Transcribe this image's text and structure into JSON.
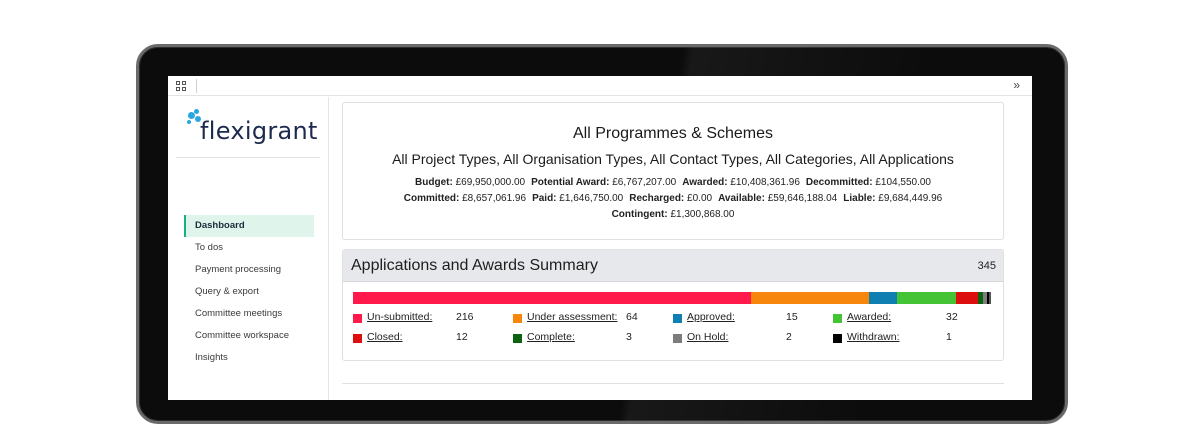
{
  "topbar": {
    "collapse_glyph": "»"
  },
  "logo": {
    "text": "flexigrant"
  },
  "nav": {
    "items": [
      {
        "label": "Dashboard",
        "active": true
      },
      {
        "label": "To dos"
      },
      {
        "label": "Payment processing"
      },
      {
        "label": "Query & export"
      },
      {
        "label": "Committee meetings"
      },
      {
        "label": "Committee workspace"
      },
      {
        "label": "Insights"
      }
    ]
  },
  "header": {
    "title": "All Programmes & Schemes",
    "subtitle": "All Project Types, All Organisation Types, All Contact Types, All Categories, All Applications",
    "financials": [
      [
        {
          "label": "Budget:",
          "value": "£69,950,000.00"
        },
        {
          "label": "Potential Award:",
          "value": "£6,767,207.00"
        },
        {
          "label": "Awarded:",
          "value": "£10,408,361.96"
        },
        {
          "label": "Decommitted:",
          "value": "£104,550.00"
        }
      ],
      [
        {
          "label": "Committed:",
          "value": "£8,657,061.96"
        },
        {
          "label": "Paid:",
          "value": "£1,646,750.00"
        },
        {
          "label": "Recharged:",
          "value": "£0.00"
        },
        {
          "label": "Available:",
          "value": "£59,646,188.04"
        },
        {
          "label": "Liable:",
          "value": "£9,684,449.96"
        }
      ],
      [
        {
          "label": "Contingent:",
          "value": "£1,300,868.00"
        }
      ]
    ]
  },
  "summary": {
    "title": "Applications and Awards Summary",
    "total": "345",
    "statuses": [
      {
        "label": "Un-submitted:",
        "count": "216",
        "value": 216,
        "color": "#ff1a4b"
      },
      {
        "label": "Under assessment:",
        "count": "64",
        "value": 64,
        "color": "#f7860c"
      },
      {
        "label": "Approved:",
        "count": "15",
        "value": 15,
        "color": "#0e7fb0"
      },
      {
        "label": "Awarded:",
        "count": "32",
        "value": 32,
        "color": "#44c334"
      },
      {
        "label": "Closed:",
        "count": "12",
        "value": 12,
        "color": "#dd0e0e"
      },
      {
        "label": "Complete:",
        "count": "3",
        "value": 3,
        "color": "#0b6312"
      },
      {
        "label": "On Hold:",
        "count": "2",
        "value": 2,
        "color": "#7d7d7d"
      },
      {
        "label": "Withdrawn:",
        "count": "1",
        "value": 1,
        "color": "#000000"
      }
    ]
  }
}
